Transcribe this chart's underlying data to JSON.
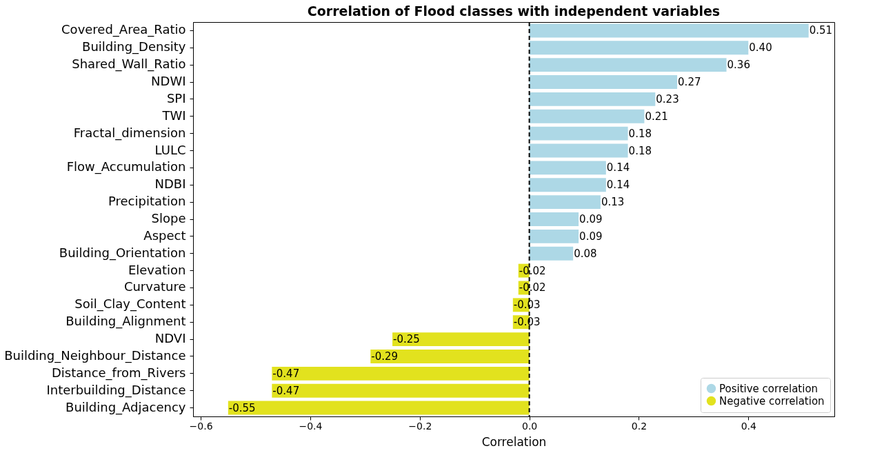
{
  "chart_data": {
    "type": "bar",
    "orientation": "horizontal",
    "title": "Correlation of Flood classes with independent variables",
    "xlabel": "Correlation",
    "categories": [
      "Covered_Area_Ratio",
      "Building_Density",
      "Shared_Wall_Ratio",
      "NDWI",
      "SPI",
      "TWI",
      "Fractal_dimension",
      "LULC",
      "Flow_Accumulation",
      "NDBI",
      "Precipitation",
      "Slope",
      "Aspect",
      "Building_Orientation",
      "Elevation",
      "Curvature",
      "Soil_Clay_Content",
      "Building_Alignment",
      "NDVI",
      "Building_Neighbour_Distance",
      "Distance_from_Rivers",
      "Interbuilding_Distance",
      "Building_Adjacency"
    ],
    "series": [
      {
        "name": "Positive correlation",
        "color": "#add8e6",
        "values": [
          0.51,
          0.4,
          0.36,
          0.27,
          0.23,
          0.21,
          0.18,
          0.18,
          0.14,
          0.14,
          0.13,
          0.09,
          0.09,
          0.08,
          null,
          null,
          null,
          null,
          null,
          null,
          null,
          null,
          null
        ],
        "value_labels": [
          "0.51",
          "0.40",
          "0.36",
          "0.27",
          "0.23",
          "0.21",
          "0.18",
          "0.18",
          "0.14",
          "0.14",
          "0.13",
          "0.09",
          "0.09",
          "0.08",
          null,
          null,
          null,
          null,
          null,
          null,
          null,
          null,
          null
        ]
      },
      {
        "name": "Negative correlation",
        "color": "#e2e21e",
        "values": [
          null,
          null,
          null,
          null,
          null,
          null,
          null,
          null,
          null,
          null,
          null,
          null,
          null,
          null,
          -0.02,
          -0.02,
          -0.03,
          -0.03,
          -0.25,
          -0.29,
          -0.47,
          -0.47,
          -0.55
        ],
        "value_labels": [
          null,
          null,
          null,
          null,
          null,
          null,
          null,
          null,
          null,
          null,
          null,
          null,
          null,
          null,
          "-0.02",
          "-0.02",
          "-0.03",
          "-0.03",
          "-0.25",
          "-0.29",
          "-0.47",
          "-0.47",
          "-0.55"
        ]
      }
    ],
    "xlim": [
      -0.614,
      0.557
    ],
    "xticks": [
      {
        "value": -0.6,
        "label": "−0.6"
      },
      {
        "value": -0.4,
        "label": "−0.4"
      },
      {
        "value": -0.2,
        "label": "−0.2"
      },
      {
        "value": 0,
        "label": "0.0"
      },
      {
        "value": 0.2,
        "label": "0.2"
      },
      {
        "value": 0.4,
        "label": "0.4"
      }
    ],
    "ref_lines": [
      {
        "axis": "x",
        "value": 0,
        "color": "#000000",
        "line_style": "dashed"
      }
    ],
    "legend": "bottom right",
    "grid": false
  }
}
